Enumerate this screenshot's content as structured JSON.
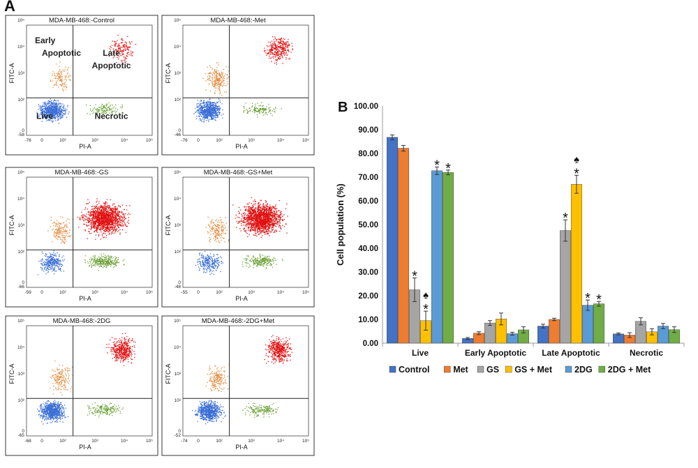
{
  "figure": {
    "panel_a_letter": "A",
    "panel_b_letter": "B"
  },
  "flow_panels": [
    {
      "title": "MDA-MB-468:-Control",
      "ymin": "-58",
      "xmin": "-76",
      "quadrant_labels": [
        "Early Apoptotic",
        "Late Apoptotic",
        "Live",
        "Necrotic"
      ]
    },
    {
      "title": "MDA-MB-468:-Met",
      "ymin": "-46",
      "xmin": "-76",
      "quadrant_labels": []
    },
    {
      "title": "MDA-MB-468:-GS",
      "ymin": "-66",
      "xmin": "-59",
      "quadrant_labels": []
    },
    {
      "title": "MDA-MB-468:-GS+Met",
      "ymin": "-48",
      "xmin": "-55",
      "quadrant_labels": []
    },
    {
      "title": "MDA-MB-468:-2DG",
      "ymin": "-65",
      "xmin": "-68",
      "quadrant_labels": []
    },
    {
      "title": "MDA-MB-468:-2DG+Met",
      "ymin": "-52",
      "xmin": "-74",
      "quadrant_labels": []
    }
  ],
  "flow_axes": {
    "x_label": "PI-A",
    "y_label": "FITC-A",
    "x_ticks": [
      "0",
      "10²",
      "10³",
      "10⁴",
      "10⁵"
    ],
    "y_ticks": [
      "0",
      "10²",
      "10³",
      "10⁴",
      "10⁵"
    ]
  },
  "chart_data": {
    "type": "bar",
    "ylabel": "Cell population (%)",
    "ylim": [
      0,
      100
    ],
    "ytick_labels": [
      "0.00",
      "10.00",
      "20.00",
      "30.00",
      "40.00",
      "50.00",
      "60.00",
      "70.00",
      "80.00",
      "90.00",
      "100.00"
    ],
    "categories": [
      "Live",
      "Early Apoptotic",
      "Late Apoptotic",
      "Necrotic"
    ],
    "series": [
      {
        "name": "Control",
        "color": "#4472C4",
        "values": [
          86.8,
          2.0,
          7.2,
          3.9
        ],
        "errors": [
          1.0,
          0.4,
          0.8,
          0.4
        ],
        "marks": [
          "",
          "",
          "",
          ""
        ]
      },
      {
        "name": "Met",
        "color": "#ED7D31",
        "values": [
          82.2,
          4.2,
          10.0,
          3.4
        ],
        "errors": [
          1.2,
          0.6,
          0.5,
          1.0
        ],
        "marks": [
          "",
          "",
          "",
          ""
        ]
      },
      {
        "name": "GS",
        "color": "#A5A5A5",
        "values": [
          22.5,
          8.5,
          47.5,
          9.2
        ],
        "errors": [
          5.0,
          1.0,
          4.5,
          1.5
        ],
        "marks": [
          "*",
          "",
          "*",
          ""
        ]
      },
      {
        "name": "GS + Met",
        "color": "#FFC000",
        "values": [
          9.5,
          10.2,
          67.0,
          4.8
        ],
        "errors": [
          4.0,
          2.5,
          3.8,
          1.3
        ],
        "marks": [
          "♠*",
          "",
          "♠*",
          ""
        ]
      },
      {
        "name": "2DG",
        "color": "#5B9BD5",
        "values": [
          72.7,
          4.0,
          16.0,
          7.2
        ],
        "errors": [
          1.6,
          0.6,
          2.2,
          1.1
        ],
        "marks": [
          "*",
          "",
          "*",
          ""
        ]
      },
      {
        "name": "2DG + Met",
        "color": "#70AD47",
        "values": [
          72.0,
          5.6,
          16.6,
          5.7
        ],
        "errors": [
          1.0,
          1.3,
          1.0,
          1.2
        ],
        "marks": [
          "*",
          "",
          "*",
          ""
        ]
      }
    ]
  }
}
